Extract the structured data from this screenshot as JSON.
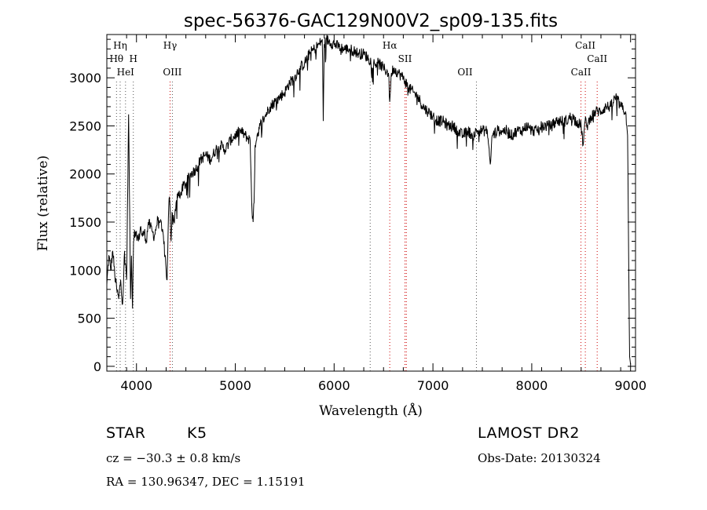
{
  "chart_data": {
    "type": "line",
    "title": "spec-56376-GAC129N00V2_sp09-135.fits",
    "xlabel": "Wavelength (Å)",
    "ylabel": "Flux (relative)",
    "xlim": [
      3700,
      9050
    ],
    "ylim": [
      -50,
      3450
    ],
    "xticks": [
      4000,
      5000,
      6000,
      7000,
      8000,
      9000
    ],
    "xtick_labels": [
      "4000",
      "5000",
      "6000",
      "7000",
      "8000",
      "9000"
    ],
    "yticks": [
      0,
      500,
      1000,
      1500,
      2000,
      2500,
      3000
    ],
    "ytick_labels": [
      "0",
      "500",
      "1000",
      "1500",
      "2000",
      "2500",
      "3000"
    ],
    "grid": false,
    "series": [
      {
        "x": [
          3700,
          3720,
          3740,
          3760,
          3780,
          3800,
          3820,
          3840,
          3860,
          3880,
          3900,
          3920,
          3940,
          3950,
          3960,
          3970,
          3980,
          3990,
          4000,
          4020,
          4040,
          4060,
          4080,
          4100,
          4120,
          4140,
          4160,
          4180,
          4200,
          4220,
          4240,
          4260,
          4280,
          4300,
          4310,
          4320,
          4330,
          4340,
          4350,
          4360,
          4380,
          4400,
          4420,
          4440,
          4460,
          4500,
          4550,
          4600,
          4650,
          4700,
          4750,
          4800,
          4850,
          4900,
          4950,
          5000,
          5050,
          5100,
          5150,
          5170,
          5180,
          5190,
          5200,
          5220,
          5250,
          5300,
          5350,
          5400,
          5450,
          5500,
          5550,
          5600,
          5650,
          5700,
          5750,
          5800,
          5850,
          5880,
          5890,
          5900,
          5920,
          5950,
          6000,
          6050,
          6100,
          6150,
          6200,
          6250,
          6300,
          6350,
          6400,
          6450,
          6500,
          6550,
          6563,
          6580,
          6600,
          6650,
          6700,
          6750,
          6800,
          6850,
          6900,
          6950,
          7000,
          7050,
          7100,
          7150,
          7200,
          7250,
          7300,
          7350,
          7400,
          7450,
          7500,
          7550,
          7580,
          7600,
          7650,
          7700,
          7750,
          7800,
          7850,
          7900,
          7950,
          8000,
          8050,
          8100,
          8150,
          8200,
          8250,
          8300,
          8350,
          8400,
          8450,
          8500,
          8520,
          8540,
          8560,
          8600,
          8650,
          8700,
          8750,
          8800,
          8850,
          8900,
          8950,
          8970,
          8980,
          8990,
          9000
        ],
        "y": [
          850,
          1150,
          1000,
          1200,
          950,
          800,
          700,
          900,
          650,
          1200,
          900,
          2620,
          700,
          1150,
          600,
          1300,
          1420,
          1350,
          1400,
          1300,
          1450,
          1350,
          1400,
          1300,
          1500,
          1450,
          1400,
          1350,
          1450,
          1550,
          1500,
          1400,
          1300,
          1000,
          900,
          1400,
          1750,
          1650,
          1300,
          1600,
          1500,
          1700,
          1800,
          1750,
          1850,
          1900,
          2000,
          2050,
          2150,
          2200,
          2150,
          2250,
          2300,
          2250,
          2350,
          2400,
          2450,
          2400,
          2350,
          1600,
          1500,
          1700,
          2300,
          2400,
          2500,
          2600,
          2700,
          2750,
          2800,
          2850,
          2950,
          3000,
          3100,
          3150,
          3250,
          3300,
          3350,
          3400,
          2550,
          3350,
          3400,
          3380,
          3350,
          3320,
          3300,
          3300,
          3280,
          3250,
          3250,
          3200,
          3150,
          3150,
          3100,
          3050,
          2750,
          3050,
          3100,
          3050,
          3000,
          2900,
          2850,
          2800,
          2700,
          2650,
          2600,
          2550,
          2550,
          2500,
          2500,
          2450,
          2400,
          2450,
          2400,
          2450,
          2450,
          2450,
          2100,
          2400,
          2450,
          2450,
          2450,
          2400,
          2450,
          2450,
          2500,
          2450,
          2450,
          2500,
          2500,
          2500,
          2550,
          2550,
          2550,
          2600,
          2550,
          2500,
          2300,
          2550,
          2500,
          2600,
          2650,
          2650,
          2700,
          2700,
          2800,
          2700,
          2650,
          2400,
          1200,
          100,
          20
        ]
      }
    ],
    "line_markers": [
      {
        "label": "Hη",
        "x": 3835,
        "row": 1
      },
      {
        "label": "Hθ",
        "x": 3798,
        "row": 2
      },
      {
        "label": "H",
        "x": 3968,
        "row": 2
      },
      {
        "label": "HeI",
        "x": 3889,
        "row": 3
      },
      {
        "label": "Hγ",
        "x": 4340,
        "row": 1
      },
      {
        "label": "OIII",
        "x": 4363,
        "row": 3
      },
      {
        "label": "Hα",
        "x": 6563,
        "row": 1
      },
      {
        "label": "SII",
        "x": 6717,
        "row": 2
      },
      {
        "label": "OII",
        "x": 7325,
        "row": 3
      },
      {
        "label": "CaII",
        "x": 8542,
        "row": 1
      },
      {
        "label": "CaII",
        "x": 8662,
        "row": 2
      },
      {
        "label": "CaII",
        "x": 8498,
        "row": 3
      }
    ],
    "dotted_lines": [
      {
        "x": 3798,
        "color": "#555555"
      },
      {
        "x": 3835,
        "color": "#555555"
      },
      {
        "x": 3889,
        "color": "#555555"
      },
      {
        "x": 3968,
        "color": "#555555"
      },
      {
        "x": 4340,
        "color": "#cc0000"
      },
      {
        "x": 4363,
        "color": "#555555"
      },
      {
        "x": 6365,
        "color": "#555555"
      },
      {
        "x": 6563,
        "color": "#cc0000"
      },
      {
        "x": 6717,
        "color": "#cc0000"
      },
      {
        "x": 6731,
        "color": "#cc0000"
      },
      {
        "x": 7440,
        "color": "#555555"
      },
      {
        "x": 8498,
        "color": "#cc0000"
      },
      {
        "x": 8542,
        "color": "#cc0000"
      },
      {
        "x": 8662,
        "color": "#cc0000"
      }
    ]
  },
  "info": {
    "object_class": "STAR",
    "subclass": "K5",
    "survey": "LAMOST DR2",
    "redshift": "cz = −30.3 ± 0.8 km/s",
    "obs_date": "Obs-Date: 20130324",
    "coords": "RA = 130.96347, DEC =   1.15191"
  }
}
